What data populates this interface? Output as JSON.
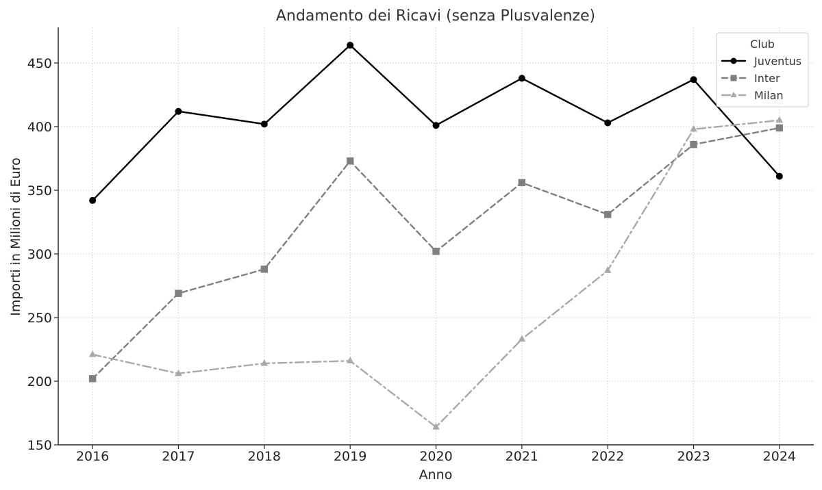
{
  "chart_data": {
    "type": "line",
    "title": "Andamento dei Ricavi (senza Plusvalenze)",
    "xlabel": "Anno",
    "ylabel": "Importi in Milioni di Euro",
    "x": [
      2016,
      2017,
      2018,
      2019,
      2020,
      2021,
      2022,
      2023,
      2024
    ],
    "xlim": [
      2015.6,
      2024.4
    ],
    "ylim": [
      150,
      478
    ],
    "yticks": [
      150,
      200,
      250,
      300,
      350,
      400,
      450
    ],
    "grid": true,
    "legend": {
      "title": "Club",
      "position": "top-right"
    },
    "series": [
      {
        "name": "Juventus",
        "values": [
          342,
          412,
          402,
          464,
          401,
          438,
          403,
          437,
          361
        ],
        "color": "#000000",
        "marker": "circle",
        "line_style": "solid"
      },
      {
        "name": "Inter",
        "values": [
          202,
          269,
          288,
          373,
          302,
          356,
          331,
          386,
          399
        ],
        "color": "#7f7f7f",
        "marker": "square",
        "line_style": "dashed"
      },
      {
        "name": "Milan",
        "values": [
          221,
          206,
          214,
          216,
          164,
          233,
          287,
          398,
          405
        ],
        "color": "#a9a9a9",
        "marker": "triangle",
        "line_style": "dashdot"
      }
    ]
  }
}
